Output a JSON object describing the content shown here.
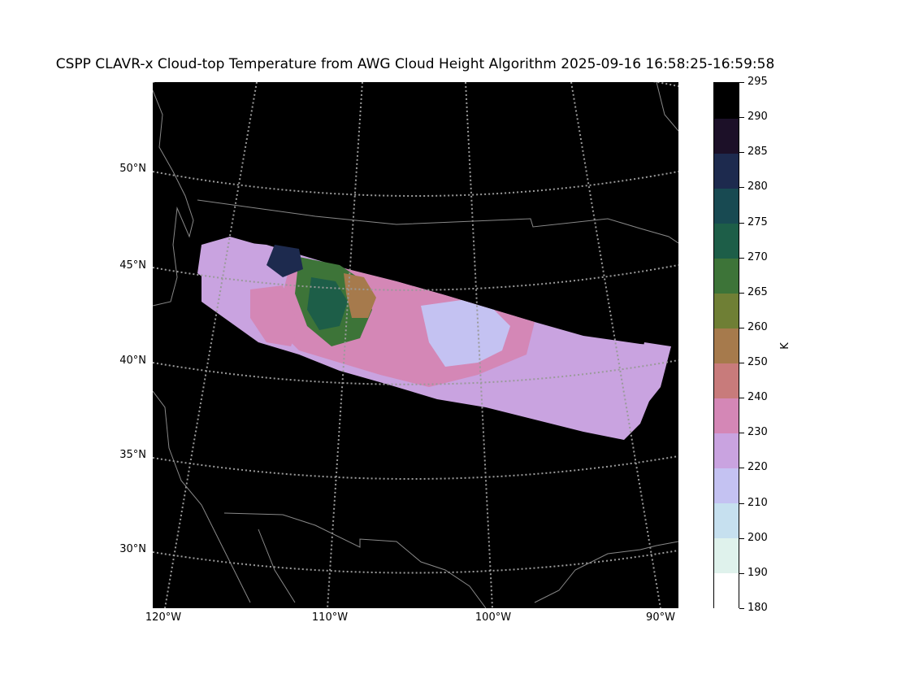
{
  "title": "CSPP CLAVR-x Cloud-top Temperature from AWG Cloud Height Algorithm 2025-09-16 16:58:25-16:59:58",
  "map": {
    "background": "#000000",
    "coastline_color": "#888888",
    "gridline_color": "#9a9a9a",
    "lat_labels": [
      "50°N",
      "45°N",
      "40°N",
      "35°N",
      "30°N"
    ],
    "lon_labels": [
      "120°W",
      "110°W",
      "100°W",
      "90°W"
    ]
  },
  "colorbar": {
    "unit": "K",
    "tick_labels": [
      "295",
      "290",
      "285",
      "280",
      "275",
      "270",
      "265",
      "260",
      "250",
      "240",
      "230",
      "220",
      "210",
      "200",
      "190",
      "180"
    ],
    "bins": [
      {
        "min": 180,
        "max": 190,
        "color": "#ffffff"
      },
      {
        "min": 190,
        "max": 200,
        "color": "#dff2ec"
      },
      {
        "min": 200,
        "max": 210,
        "color": "#c6e0ef"
      },
      {
        "min": 210,
        "max": 220,
        "color": "#c4c2f2"
      },
      {
        "min": 220,
        "max": 230,
        "color": "#c9a3e0"
      },
      {
        "min": 230,
        "max": 240,
        "color": "#d487b6"
      },
      {
        "min": 240,
        "max": 250,
        "color": "#c87b7b"
      },
      {
        "min": 250,
        "max": 260,
        "color": "#a67a4c"
      },
      {
        "min": 260,
        "max": 265,
        "color": "#6f7f35"
      },
      {
        "min": 265,
        "max": 270,
        "color": "#3d7438"
      },
      {
        "min": 270,
        "max": 275,
        "color": "#1d5e48"
      },
      {
        "min": 275,
        "max": 280,
        "color": "#184a52"
      },
      {
        "min": 280,
        "max": 285,
        "color": "#1d2a4e"
      },
      {
        "min": 285,
        "max": 290,
        "color": "#1c1028"
      },
      {
        "min": 290,
        "max": 295,
        "color": "#000000"
      }
    ]
  }
}
